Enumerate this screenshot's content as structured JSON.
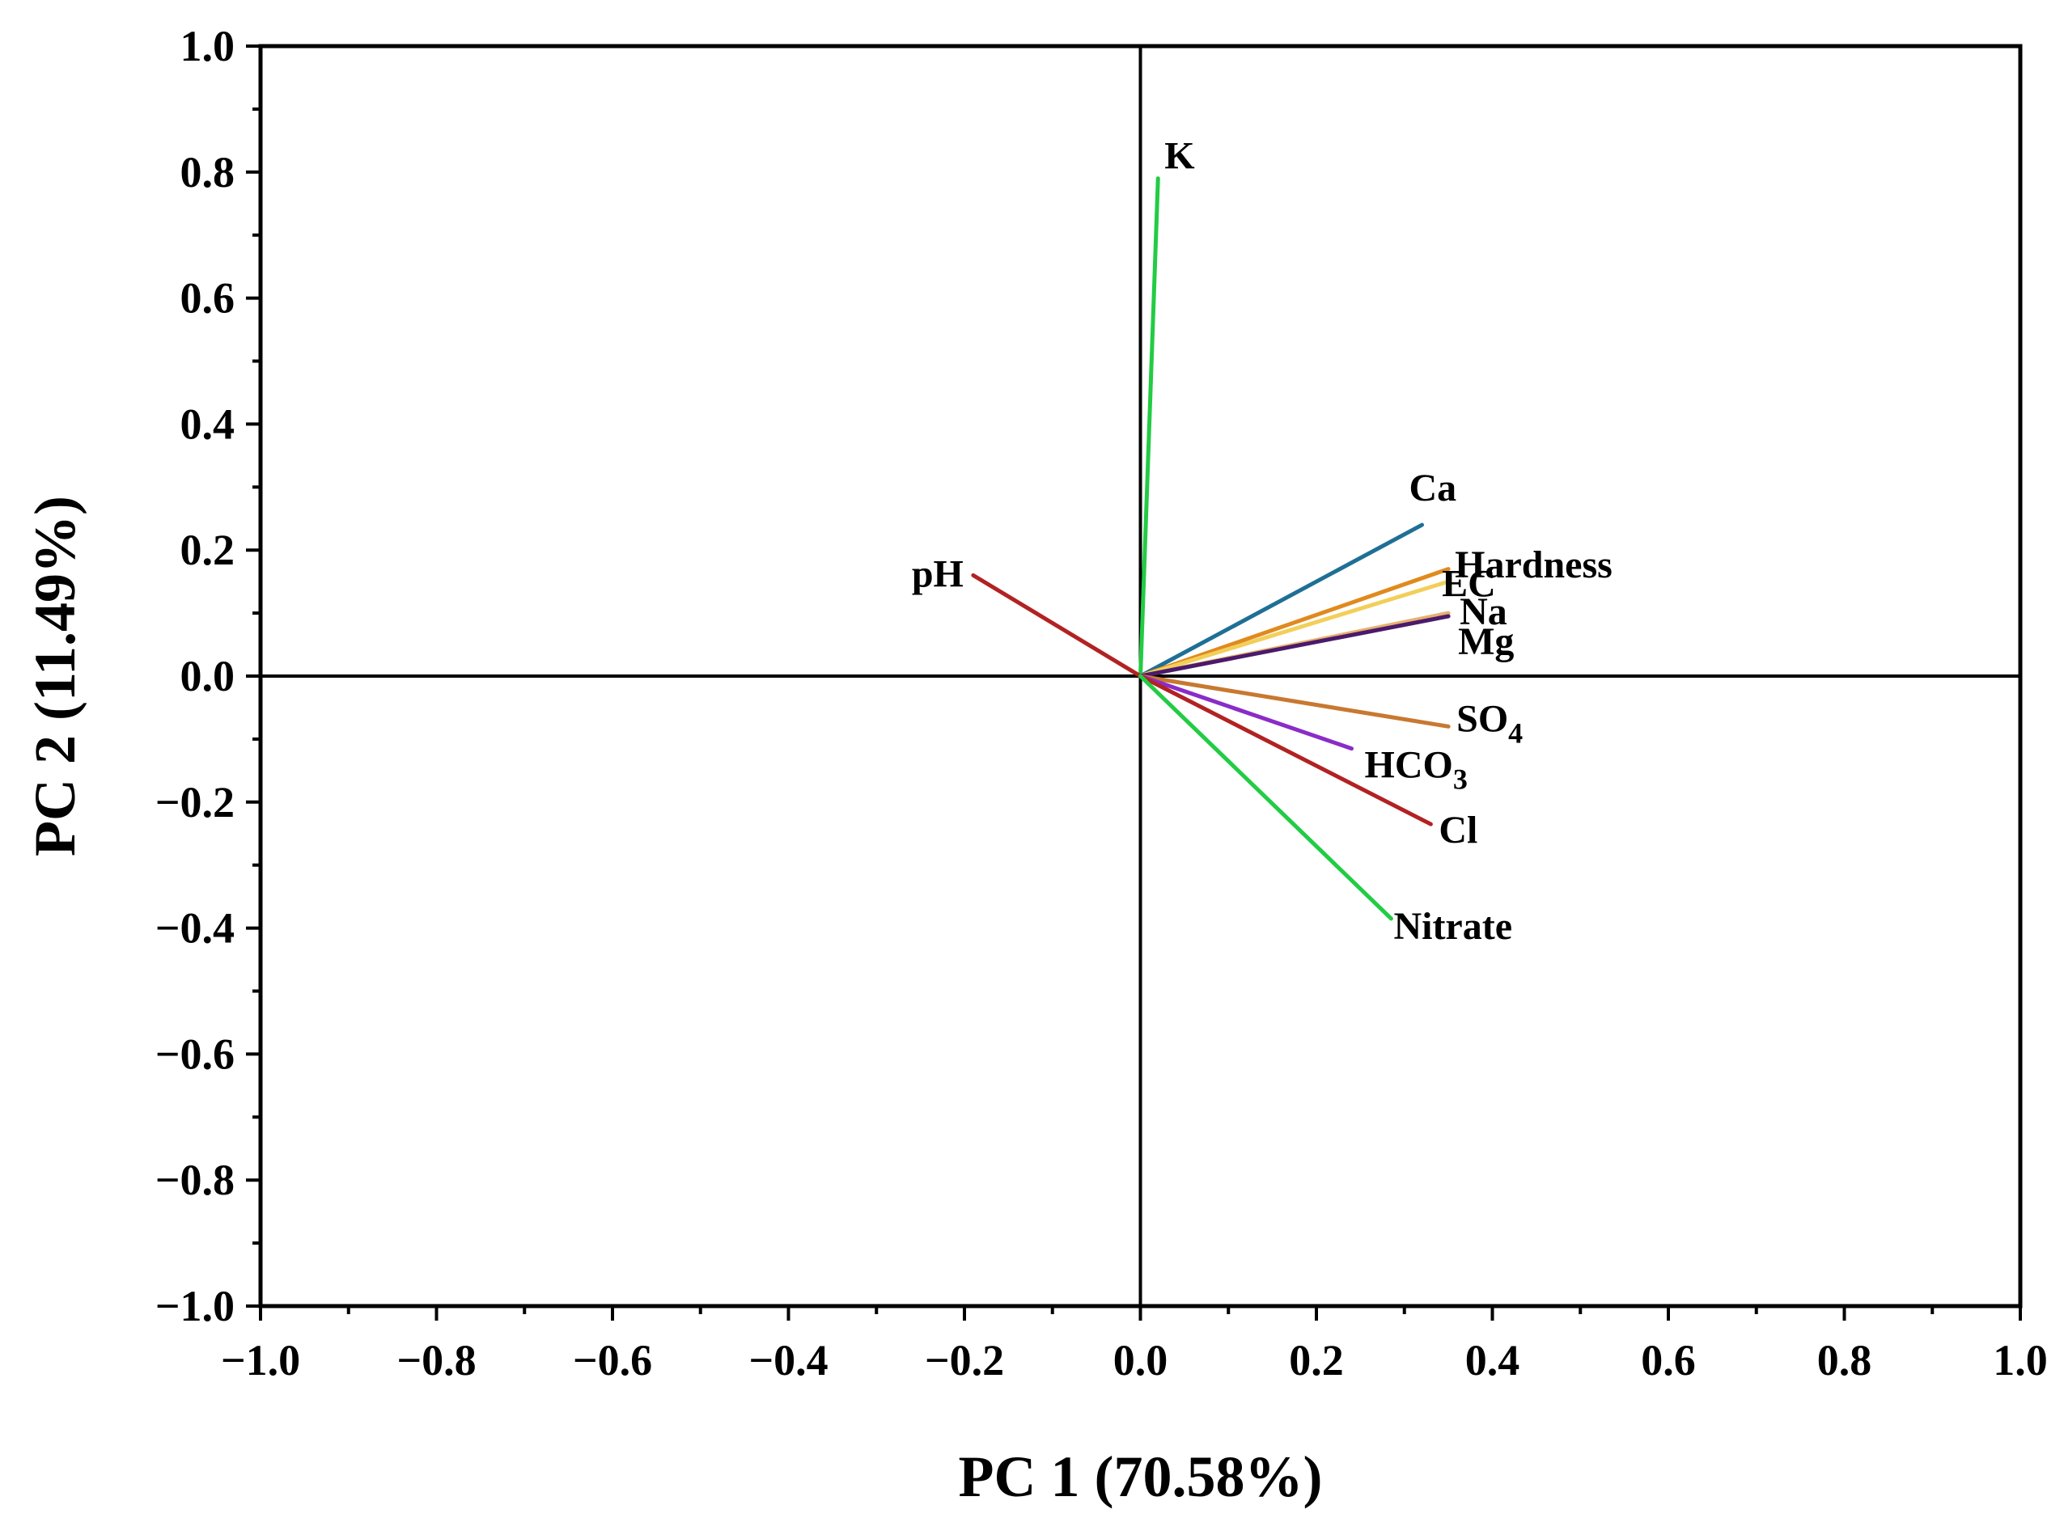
{
  "chart_data": {
    "type": "biplot-loadings",
    "xlabel": "PC 1 (70.58%)",
    "ylabel": "PC 2 (11.49%)",
    "xlim": [
      -1.0,
      1.0
    ],
    "ylim": [
      -1.0,
      1.0
    ],
    "xticks": [
      "-1.0",
      "-0.8",
      "-0.6",
      "-0.4",
      "-0.2",
      "0.0",
      "0.2",
      "0.4",
      "0.6",
      "0.8",
      "1.0"
    ],
    "yticks": [
      "1.0",
      "0.8",
      "0.6",
      "0.4",
      "0.2",
      "0.0",
      "-0.2",
      "-0.4",
      "-0.6",
      "-0.8",
      "-1.0"
    ],
    "vectors": [
      {
        "name": "K",
        "label": "K",
        "sub": "",
        "x": 0.02,
        "y": 0.79,
        "color": "#22cc44"
      },
      {
        "name": "Ca",
        "label": "Ca",
        "sub": "",
        "x": 0.32,
        "y": 0.24,
        "color": "#1f6f95"
      },
      {
        "name": "EC",
        "label": "EC",
        "sub": "",
        "x": 0.35,
        "y": 0.17,
        "color": "#e08a1e"
      },
      {
        "name": "Hardness",
        "label": "Hardness",
        "sub": "",
        "x": 0.35,
        "y": 0.15,
        "color": "#f2cf5a"
      },
      {
        "name": "Na",
        "label": "Na",
        "sub": "",
        "x": 0.35,
        "y": 0.1,
        "color": "#e8b070"
      },
      {
        "name": "Mg",
        "label": "Mg",
        "sub": "",
        "x": 0.35,
        "y": 0.095,
        "color": "#4a1a6b"
      },
      {
        "name": "pH",
        "label": "pH",
        "sub": "",
        "x": -0.19,
        "y": 0.16,
        "color": "#b22222"
      },
      {
        "name": "SO4",
        "label": "SO",
        "sub": "4",
        "x": 0.35,
        "y": -0.08,
        "color": "#c87830"
      },
      {
        "name": "HCO3",
        "label": "HCO",
        "sub": "3",
        "x": 0.24,
        "y": -0.115,
        "color": "#8a2cc8"
      },
      {
        "name": "Cl",
        "label": "Cl",
        "sub": "",
        "x": 0.33,
        "y": -0.235,
        "color": "#b22222"
      },
      {
        "name": "Nitrate",
        "label": "Nitrate",
        "sub": "",
        "x": 0.285,
        "y": -0.385,
        "color": "#22cc44"
      }
    ]
  }
}
